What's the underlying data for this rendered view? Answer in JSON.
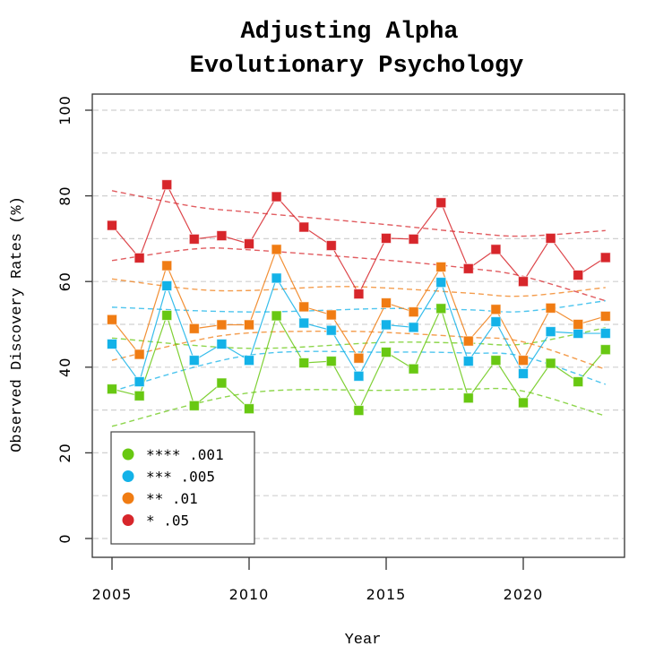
{
  "chart_data": {
    "type": "line",
    "title": "Adjusting Alpha",
    "subtitle": "Evolutionary Psychology",
    "xlabel": "Year",
    "ylabel": "Observed Discovery Rates (%)",
    "xlim": [
      2004.3,
      2023.7
    ],
    "ylim": [
      0,
      100
    ],
    "x_ticks": [
      2005,
      2010,
      2015,
      2020
    ],
    "y_ticks": [
      0,
      20,
      40,
      60,
      80,
      100
    ],
    "grid": "horizontal dashed every 10",
    "legend_position": "bottom-left",
    "x": [
      2005,
      2006,
      2007,
      2008,
      2009,
      2010,
      2011,
      2012,
      2013,
      2014,
      2015,
      2016,
      2017,
      2018,
      2019,
      2020,
      2021,
      2022,
      2023
    ],
    "series": [
      {
        "name": "* .05",
        "color": "#d7262b",
        "values": [
          73.1,
          65.5,
          82.6,
          69.9,
          70.7,
          68.8,
          79.8,
          72.7,
          68.4,
          57.1,
          70.1,
          69.9,
          78.4,
          63.0,
          67.5,
          60.0,
          70.1,
          61.5,
          65.6
        ],
        "band_x": [
          2005,
          2008,
          2010,
          2015,
          2018,
          2020,
          2023
        ],
        "band_upper": [
          81.2,
          77.5,
          76.2,
          73.3,
          71.4,
          70.6,
          71.9
        ],
        "band_lower": [
          64.9,
          67.6,
          67.4,
          65.0,
          63.1,
          61.2,
          55.5
        ]
      },
      {
        "name": "** .01",
        "color": "#f07c13",
        "values": [
          51.1,
          43.0,
          63.7,
          49.0,
          49.9,
          49.9,
          67.5,
          54.1,
          52.2,
          42.1,
          55.0,
          52.9,
          63.4,
          46.1,
          53.5,
          41.6,
          53.8,
          50.0,
          51.9
        ],
        "band_x": [
          2005,
          2008,
          2010,
          2013,
          2015,
          2018,
          2020,
          2023
        ],
        "band_upper": [
          60.6,
          58.2,
          57.9,
          58.8,
          58.5,
          57.3,
          56.6,
          58.6
        ],
        "band_lower": [
          41.6,
          46.2,
          48.0,
          48.4,
          48.1,
          47.0,
          45.9,
          39.5
        ]
      },
      {
        "name": "*** .005",
        "color": "#13b2e8",
        "values": [
          45.4,
          36.6,
          59.0,
          41.6,
          45.4,
          41.6,
          60.8,
          50.3,
          48.6,
          37.9,
          49.9,
          49.3,
          59.8,
          41.4,
          50.6,
          38.5,
          48.3,
          47.9,
          47.9
        ],
        "band_x": [
          2005,
          2010,
          2015,
          2018,
          2020,
          2023
        ],
        "band_upper": [
          54.0,
          52.9,
          53.7,
          53.4,
          53.0,
          55.5
        ],
        "band_lower": [
          34.4,
          42.8,
          43.5,
          43.3,
          42.5,
          36.0
        ]
      },
      {
        "name": "**** .001",
        "color": "#68c812",
        "values": [
          34.9,
          33.3,
          52.1,
          31.0,
          36.3,
          30.3,
          52.0,
          41.0,
          41.4,
          29.9,
          43.5,
          39.6,
          53.7,
          32.8,
          41.6,
          31.7,
          40.9,
          36.6,
          44.1
        ],
        "band_x": [
          2005,
          2010,
          2015,
          2018,
          2020,
          2023
        ],
        "band_upper": [
          46.8,
          44.4,
          45.8,
          45.6,
          45.4,
          49.2
        ],
        "band_lower": [
          26.2,
          34.0,
          34.6,
          34.9,
          34.4,
          28.6
        ]
      }
    ],
    "legend": [
      {
        "label": "**** .001",
        "color": "#68c812"
      },
      {
        "label": "*** .005",
        "color": "#13b2e8"
      },
      {
        "label": "** .01",
        "color": "#f07c13"
      },
      {
        "label": "* .05",
        "color": "#d7262b"
      }
    ]
  }
}
